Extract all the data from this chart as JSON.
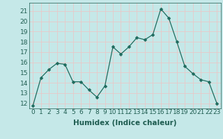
{
  "x": [
    0,
    1,
    2,
    3,
    4,
    5,
    6,
    7,
    8,
    9,
    10,
    11,
    12,
    13,
    14,
    15,
    16,
    17,
    18,
    19,
    20,
    21,
    22,
    23
  ],
  "y": [
    11.8,
    14.5,
    15.3,
    15.9,
    15.8,
    14.1,
    14.1,
    13.3,
    12.6,
    13.7,
    17.5,
    16.8,
    17.5,
    18.4,
    18.2,
    18.7,
    21.2,
    20.3,
    18.0,
    15.6,
    14.9,
    14.3,
    14.1,
    12.0
  ],
  "line_color": "#1e6b5e",
  "marker": "D",
  "marker_size": 2.5,
  "bg_color": "#c5e8e8",
  "grid_color": "#e8c8c8",
  "xlabel": "Humidex (Indice chaleur)",
  "ylabel_ticks": [
    12,
    13,
    14,
    15,
    16,
    17,
    18,
    19,
    20,
    21
  ],
  "xtick_labels": [
    "0",
    "1",
    "2",
    "3",
    "4",
    "5",
    "6",
    "7",
    "8",
    "9",
    "10",
    "11",
    "12",
    "13",
    "14",
    "15",
    "16",
    "17",
    "18",
    "19",
    "20",
    "21",
    "22",
    "23"
  ],
  "ylim": [
    11.5,
    21.8
  ],
  "xlim": [
    -0.5,
    23.5
  ],
  "xlabel_fontsize": 7.5,
  "tick_fontsize": 6.5,
  "label_color": "#1e5c50"
}
